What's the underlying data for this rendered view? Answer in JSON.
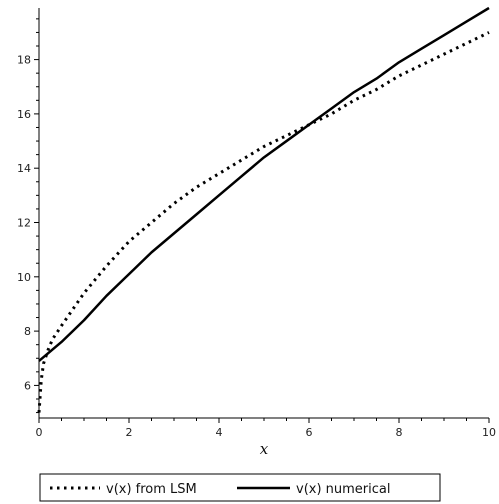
{
  "chart_data": {
    "type": "line",
    "title": "",
    "xlabel": "x",
    "ylabel": "",
    "xlim": [
      0,
      10
    ],
    "ylim": [
      4.8,
      19.9
    ],
    "xticks": [
      0,
      2,
      4,
      6,
      8,
      10
    ],
    "yticks": [
      6,
      8,
      10,
      12,
      14,
      16,
      18
    ],
    "grid": false,
    "legend_position": "bottom",
    "series": [
      {
        "name": "v(x) from LSM",
        "style": "dotted",
        "color": "#000000",
        "x": [
          0,
          0.05,
          0.1,
          0.2,
          0.3,
          0.5,
          0.75,
          1,
          1.5,
          2,
          2.5,
          3,
          3.5,
          4,
          4.5,
          5,
          5.5,
          6,
          6.5,
          7,
          7.5,
          8,
          8.5,
          9,
          9.5,
          10
        ],
        "y": [
          5.0,
          6.2,
          6.8,
          7.3,
          7.7,
          8.2,
          8.8,
          9.4,
          10.4,
          11.3,
          12.0,
          12.7,
          13.3,
          13.8,
          14.3,
          14.8,
          15.2,
          15.6,
          16.0,
          16.5,
          16.9,
          17.4,
          17.8,
          18.2,
          18.6,
          19.0
        ]
      },
      {
        "name": "v(x) numerical",
        "style": "solid",
        "color": "#000000",
        "x": [
          0,
          0.5,
          1,
          1.5,
          2,
          2.5,
          3,
          3.5,
          4,
          4.5,
          5,
          5.5,
          6,
          6.5,
          7,
          7.5,
          8,
          8.5,
          9,
          9.5,
          10
        ],
        "y": [
          6.9,
          7.6,
          8.4,
          9.3,
          10.1,
          10.9,
          11.6,
          12.3,
          13.0,
          13.7,
          14.4,
          15.0,
          15.6,
          16.2,
          16.8,
          17.3,
          17.9,
          18.4,
          18.9,
          19.4,
          19.9
        ]
      }
    ]
  }
}
